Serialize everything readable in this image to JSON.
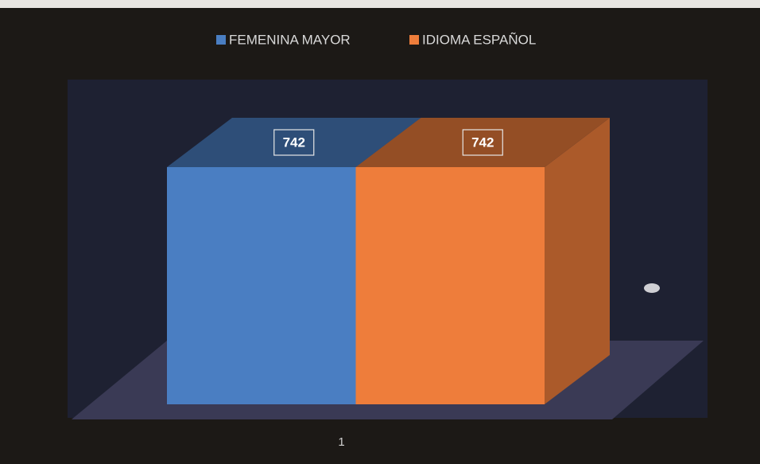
{
  "chart_data": {
    "type": "bar",
    "categories": [
      "1"
    ],
    "series": [
      {
        "name": "FEMENINA MAYOR",
        "color": "#4a7ec2",
        "values": [
          742
        ]
      },
      {
        "name": "IDIOMA ESPAÑOL",
        "color": "#ee7d3b",
        "values": [
          742
        ]
      }
    ],
    "legend": "top"
  }
}
